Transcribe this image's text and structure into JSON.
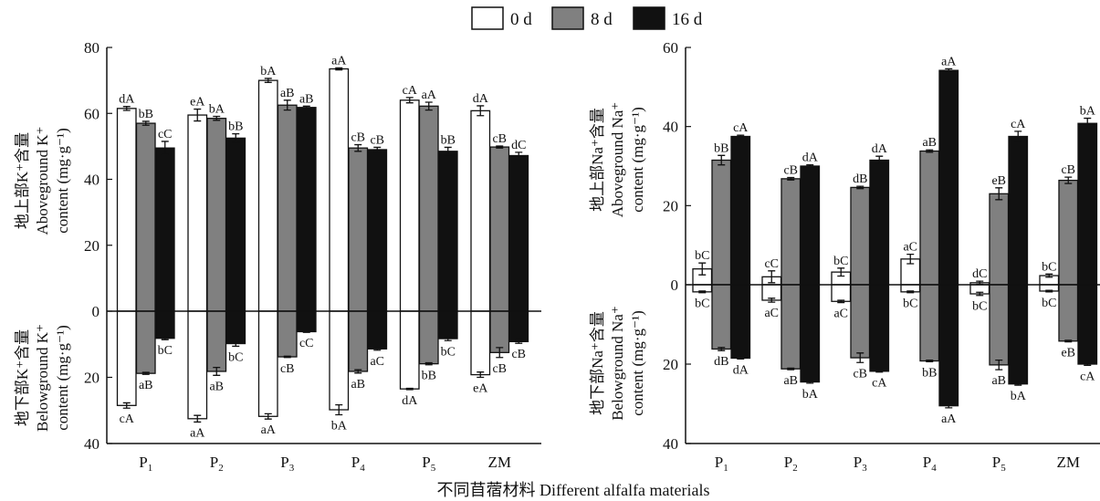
{
  "legend": {
    "items": [
      "0 d",
      "8 d",
      "16 d"
    ],
    "colors": [
      "#ffffff",
      "#808080",
      "#111111"
    ]
  },
  "xlabel": "不同苜蓿材料 Different alfalfa materials",
  "chart_data": [
    {
      "type": "bar",
      "name": "K",
      "categories": [
        {
          "base": "P",
          "sub": "1"
        },
        {
          "base": "P",
          "sub": "2"
        },
        {
          "base": "P",
          "sub": "3"
        },
        {
          "base": "P",
          "sub": "4"
        },
        {
          "base": "P",
          "sub": "5"
        },
        {
          "base": "ZM",
          "sub": ""
        }
      ],
      "upper_ylabel": [
        "地上部K⁺含量",
        "Aboveground K⁺",
        "content (mg·g⁻¹)"
      ],
      "lower_ylabel": [
        "地下部K⁺含量",
        "Belowground K⁺",
        "content (mg·g⁻¹)"
      ],
      "upper_ticks": [
        "80",
        "60",
        "40",
        "20",
        "0"
      ],
      "lower_ticks": [
        "20",
        "40"
      ],
      "upper_ylim": [
        0,
        80
      ],
      "lower_ylim": [
        0,
        40
      ],
      "series": [
        {
          "name": "0 d",
          "above": [
            61.5,
            59.5,
            70,
            73.5,
            64,
            60.8
          ],
          "above_err": [
            0.6,
            1.8,
            0.6,
            0.3,
            0.8,
            1.5
          ],
          "above_labels": [
            "dA",
            "eA",
            "bA",
            "aA",
            "cA",
            "dA"
          ],
          "below": [
            28.5,
            32.5,
            31.8,
            29.8,
            23.5,
            19.2
          ],
          "below_err": [
            0.8,
            1.0,
            0.8,
            1.5,
            0.2,
            0.8
          ],
          "below_labels": [
            "cA",
            "aA",
            "aA",
            "bA",
            "dA",
            "eA"
          ]
        },
        {
          "name": "8 d",
          "above": [
            57,
            58.5,
            62.5,
            49.5,
            62.2,
            49.8
          ],
          "above_err": [
            0.6,
            0.6,
            1.5,
            1.0,
            1.2,
            0.3
          ],
          "above_labels": [
            "bB",
            "bA",
            "aB",
            "cB",
            "aA",
            "cB"
          ],
          "below": [
            18.8,
            18.2,
            13.8,
            18.2,
            15.9,
            12.5
          ],
          "below_err": [
            0.3,
            1.2,
            0.2,
            0.5,
            0.3,
            1.5
          ],
          "below_labels": [
            "aB",
            "aB",
            "cB",
            "aB",
            "bB",
            "cB"
          ]
        },
        {
          "name": "16 d",
          "above": [
            49.5,
            52.5,
            61.8,
            49,
            48.5,
            47.2
          ],
          "above_err": [
            2.0,
            1.3,
            0.4,
            0.7,
            1.2,
            1.0
          ],
          "above_labels": [
            "cC",
            "bB",
            "aB",
            "cB",
            "bB",
            "dC"
          ],
          "below": [
            8.2,
            9.8,
            6.2,
            11.4,
            8.3,
            9.2
          ],
          "below_err": [
            0.4,
            0.8,
            0.2,
            0.4,
            0.6,
            0.5
          ],
          "below_labels": [
            "bC",
            "bC",
            "cC",
            "aC",
            "bC",
            "cB"
          ]
        }
      ]
    },
    {
      "type": "bar",
      "name": "Na",
      "categories": [
        {
          "base": "P",
          "sub": "1"
        },
        {
          "base": "P",
          "sub": "2"
        },
        {
          "base": "P",
          "sub": "3"
        },
        {
          "base": "P",
          "sub": "4"
        },
        {
          "base": "P",
          "sub": "5"
        },
        {
          "base": "ZM",
          "sub": ""
        }
      ],
      "upper_ylabel": [
        "地上部Na⁺含量",
        "Aboveground Na⁺",
        "content (mg·g⁻¹)"
      ],
      "lower_ylabel": [
        "地下部Na⁺含量",
        "Belowground Na⁺",
        "content (mg·g⁻¹)"
      ],
      "upper_ticks": [
        "60",
        "40",
        "20",
        "0"
      ],
      "lower_ticks": [
        "20",
        "40"
      ],
      "upper_ylim": [
        0,
        60
      ],
      "lower_ylim": [
        0,
        40
      ],
      "series": [
        {
          "name": "0 d",
          "above": [
            4.0,
            2.0,
            3.2,
            6.5,
            0.5,
            2.3
          ],
          "above_err": [
            1.5,
            1.5,
            1.0,
            1.2,
            0.4,
            0.4
          ],
          "above_labels": [
            "bC",
            "cC",
            "bC",
            "aC",
            "dC",
            "bC"
          ],
          "below": [
            1.8,
            3.9,
            4.2,
            1.8,
            2.3,
            1.6
          ],
          "below_err": [
            0.2,
            0.5,
            0.3,
            0.2,
            0.4,
            0.2
          ],
          "below_labels": [
            "bC",
            "aC",
            "aC",
            "bC",
            "bC",
            "bC"
          ]
        },
        {
          "name": "8 d",
          "above": [
            31.5,
            26.8,
            24.6,
            33.8,
            23.0,
            26.4
          ],
          "above_err": [
            1.2,
            0.3,
            0.3,
            0.3,
            1.5,
            0.8
          ],
          "above_labels": [
            "bB",
            "cB",
            "dB",
            "aB",
            "eB",
            "cB"
          ],
          "below": [
            16.2,
            21.2,
            18.4,
            19.2,
            20.2,
            14.2
          ],
          "below_err": [
            0.4,
            0.2,
            1.2,
            0.2,
            1.2,
            0.2
          ],
          "below_labels": [
            "dB",
            "aB",
            "cB",
            "bB",
            "aB",
            "eB"
          ]
        },
        {
          "name": "16 d",
          "above": [
            37.5,
            30.0,
            31.5,
            54.2,
            37.5,
            40.8
          ],
          "above_err": [
            0.3,
            0.3,
            1.0,
            0.4,
            1.3,
            1.3
          ],
          "above_labels": [
            "cA",
            "dA",
            "dA",
            "aA",
            "cA",
            "bA"
          ],
          "below": [
            18.5,
            24.5,
            21.8,
            30.5,
            25.0,
            20.0
          ],
          "below_err": [
            0.2,
            0.3,
            0.2,
            0.5,
            0.3,
            0.3
          ],
          "below_labels": [
            "dA",
            "bA",
            "cA",
            "aA",
            "bA",
            "cA"
          ]
        }
      ]
    }
  ]
}
